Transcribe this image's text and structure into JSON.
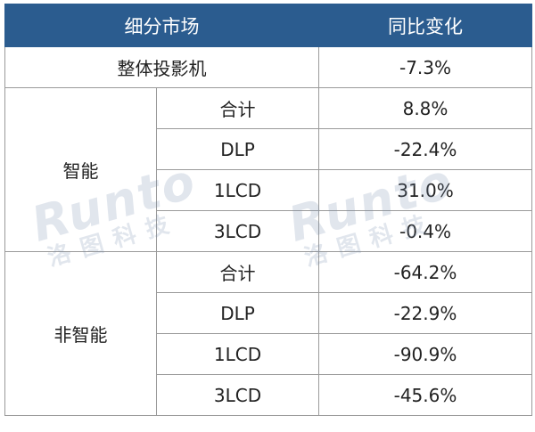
{
  "header": {
    "col_segment": "细分市场",
    "col_yoy": "同比变化"
  },
  "rows": {
    "overall": {
      "label": "整体投影机",
      "value": "-7.3%"
    },
    "smart": {
      "label": "智能",
      "items": [
        {
          "sub": "合计",
          "value": "8.8%"
        },
        {
          "sub": "DLP",
          "value": "-22.4%"
        },
        {
          "sub": "1LCD",
          "value": "31.0%"
        },
        {
          "sub": "3LCD",
          "value": "-0.4%"
        }
      ]
    },
    "non_smart": {
      "label": "非智能",
      "items": [
        {
          "sub": "合计",
          "value": "-64.2%"
        },
        {
          "sub": "DLP",
          "value": "-22.9%"
        },
        {
          "sub": "1LCD",
          "value": "-90.9%"
        },
        {
          "sub": "3LCD",
          "value": "-45.6%"
        }
      ]
    }
  },
  "watermark": {
    "latin": "Runto",
    "cjk": "洛图科技"
  }
}
